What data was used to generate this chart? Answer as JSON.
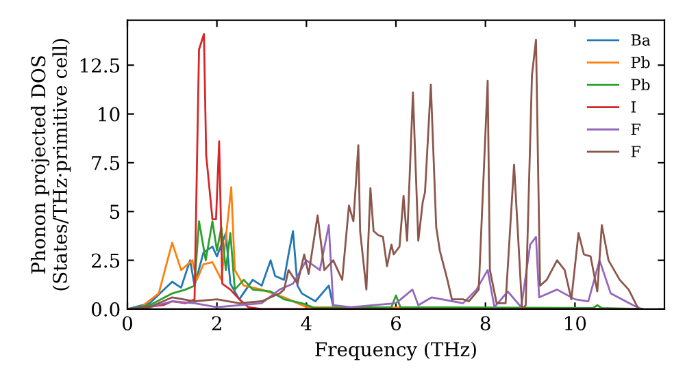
{
  "chart_data": {
    "type": "line",
    "xlabel": "Frequency (THz)",
    "ylabel": "Phonon projected DOS\n(States/THz·primitive cell)",
    "xlim": [
      0,
      12
    ],
    "xticks": [
      0,
      2,
      4,
      6,
      8,
      10
    ],
    "ylim": [
      0,
      14.8
    ],
    "yticks": [
      {
        "value": 0,
        "label": "0.0"
      },
      2.5,
      5,
      7.5,
      10,
      12.5
    ],
    "legend": "top right",
    "grid": false,
    "marker": "none",
    "line_style": "solid",
    "series": [
      {
        "name": "Ba",
        "color": "#1f77b4",
        "x": [
          0,
          0.5,
          1.0,
          1.2,
          1.4,
          1.5,
          1.7,
          1.9,
          2.0,
          2.2,
          2.3,
          2.5,
          2.8,
          3.0,
          3.2,
          3.3,
          3.5,
          3.6,
          3.7,
          3.8,
          3.9,
          4.2,
          4.5,
          4.6,
          5.0,
          11.5
        ],
        "values": [
          0,
          0.3,
          1.4,
          1.1,
          2.5,
          1.2,
          2.9,
          3.2,
          2.7,
          3.9,
          1.3,
          0.5,
          1.5,
          1.2,
          2.5,
          1.7,
          1.5,
          2.8,
          4.0,
          1.2,
          0.8,
          0.4,
          1.2,
          0.1,
          0,
          0
        ]
      },
      {
        "name": "Pb",
        "color": "#ff7f0e",
        "x": [
          0,
          0.3,
          0.7,
          1.0,
          1.2,
          1.45,
          1.55,
          1.7,
          1.9,
          2.1,
          2.32,
          2.4,
          2.6,
          3.0,
          3.5,
          3.8,
          4.0,
          11.5
        ],
        "values": [
          0,
          0.1,
          0.8,
          3.4,
          2.0,
          2.5,
          1.5,
          2.3,
          2.4,
          1.5,
          6.25,
          2.0,
          1.2,
          1.0,
          0.6,
          0.3,
          0.1,
          0
        ]
      },
      {
        "name": "Pb",
        "color": "#2ca02c",
        "x": [
          0,
          0.5,
          1.0,
          1.3,
          1.5,
          1.6,
          1.75,
          1.9,
          2.0,
          2.1,
          2.2,
          2.3,
          2.4,
          2.6,
          2.8,
          3.2,
          3.5,
          3.9,
          4.2,
          5.9,
          6.0,
          6.1,
          10.4,
          10.5,
          10.6,
          11.5
        ],
        "values": [
          0,
          0.2,
          0.8,
          1.0,
          1.2,
          4.5,
          2.5,
          4.5,
          3.0,
          4.2,
          2.0,
          3.9,
          1.0,
          1.5,
          1.0,
          0.9,
          0.5,
          0.3,
          0.05,
          0.1,
          0.7,
          0.1,
          0.05,
          0.2,
          0.05,
          0
        ]
      },
      {
        "name": "I",
        "color": "#d62728",
        "x": [
          0,
          0.8,
          1.0,
          1.3,
          1.5,
          1.6,
          1.71,
          1.76,
          1.9,
          1.98,
          2.05,
          2.12,
          2.3,
          2.5,
          2.7,
          3.0,
          11.5
        ],
        "values": [
          0,
          0.2,
          0.4,
          0.3,
          0.5,
          13.3,
          14.1,
          7.9,
          4.6,
          4.6,
          8.6,
          1.3,
          1.0,
          0.5,
          0.1,
          0,
          0
        ]
      },
      {
        "name": "F",
        "color": "#9467bd",
        "x": [
          0,
          0.5,
          1.0,
          1.5,
          2.0,
          3.0,
          3.4,
          3.7,
          4.0,
          4.3,
          4.5,
          4.6,
          5.0,
          5.5,
          6.0,
          6.37,
          6.5,
          6.8,
          7.5,
          7.8,
          8.05,
          8.2,
          8.5,
          8.8,
          9.0,
          9.13,
          9.2,
          9.6,
          10.0,
          10.3,
          10.55,
          10.8,
          11.3,
          11.5
        ],
        "values": [
          0,
          0.1,
          0.4,
          0.3,
          0.1,
          0.3,
          1.0,
          1.3,
          2.5,
          2.0,
          4.3,
          0.2,
          0.1,
          0.2,
          0.3,
          1.0,
          0.2,
          0.6,
          0.3,
          1.0,
          2.0,
          0.1,
          0.9,
          0.1,
          3.3,
          3.7,
          0.6,
          1.0,
          0.5,
          0.4,
          2.5,
          0.8,
          0.2,
          0
        ]
      },
      {
        "name": "F",
        "color": "#8c564b",
        "x": [
          0,
          0.5,
          1.0,
          1.5,
          2.0,
          2.5,
          3.0,
          3.4,
          3.5,
          3.6,
          3.8,
          3.95,
          4.05,
          4.25,
          4.4,
          4.6,
          4.8,
          4.95,
          5.05,
          5.16,
          5.2,
          5.34,
          5.43,
          5.5,
          5.6,
          5.71,
          5.8,
          5.9,
          5.95,
          6.08,
          6.17,
          6.25,
          6.38,
          6.5,
          6.6,
          6.65,
          6.78,
          6.9,
          6.98,
          7.15,
          7.25,
          7.5,
          7.63,
          7.85,
          8.05,
          8.1,
          8.25,
          8.45,
          8.64,
          8.82,
          8.9,
          9.04,
          9.13,
          9.22,
          9.37,
          9.6,
          9.77,
          9.92,
          10.08,
          10.2,
          10.35,
          10.5,
          10.6,
          10.75,
          11.0,
          11.2,
          11.42
        ],
        "values": [
          0,
          0.1,
          0.6,
          0.4,
          0.5,
          0.3,
          0.4,
          0.8,
          1.0,
          2.0,
          1.3,
          2.8,
          1.8,
          4.8,
          2.0,
          2.5,
          1.5,
          5.3,
          4.5,
          8.4,
          4.0,
          1.0,
          6.2,
          4.0,
          3.8,
          3.7,
          2.2,
          3.3,
          2.8,
          3.2,
          5.8,
          3.5,
          11.1,
          3.5,
          5.5,
          6.0,
          11.5,
          4.2,
          3.0,
          1.5,
          0.5,
          0.5,
          0.4,
          1.0,
          11.7,
          2.0,
          0.3,
          0.3,
          7.4,
          0.0,
          0.2,
          12.0,
          13.8,
          1.2,
          1.5,
          2.5,
          2.0,
          0.5,
          3.9,
          2.8,
          2.7,
          0.9,
          4.3,
          2.5,
          1.5,
          1.0,
          0.0
        ]
      }
    ]
  }
}
